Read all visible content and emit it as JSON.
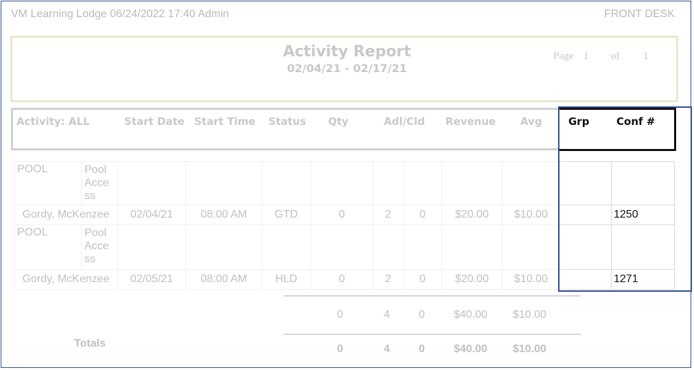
{
  "header": {
    "left": "VM Learning Lodge 06/24/2022 17:40  Admin",
    "right": "FRONT DESK"
  },
  "report": {
    "title": "Activity Report",
    "range": "02/04/21 - 02/17/21",
    "page_label": "Page",
    "page": "1",
    "of_label": "of",
    "total_pages": "1"
  },
  "columns": [
    "Activity: ALL",
    "Start Date",
    "Start Time",
    "Status",
    "Qty",
    "Adl/Cld",
    "Revenue",
    "Avg",
    "Grp",
    "Conf #"
  ],
  "rows": [
    {
      "activity": "POOL",
      "desc": "Pool Acce ss"
    },
    {
      "name": "Gordy, McKenzee",
      "date": "02/04/21",
      "time": "08:00 AM",
      "status": "GTD",
      "qty": "0",
      "adl": "2",
      "cld": "0",
      "revenue": "$20.00",
      "avg": "$10.00",
      "grp": "",
      "conf": "1250"
    },
    {
      "activity": "POOL",
      "desc": "Pool Acce ss"
    },
    {
      "name": "Gordy, McKenzee",
      "date": "02/05/21",
      "time": "08:00 AM",
      "status": "HLD",
      "qty": "0",
      "adl": "2",
      "cld": "0",
      "revenue": "$20.00",
      "avg": "$10.00",
      "grp": "",
      "conf": "1271"
    }
  ],
  "subtotal": {
    "qty": "0",
    "adl": "4",
    "cld": "0",
    "revenue": "$40.00",
    "avg": "$10.00"
  },
  "totals": {
    "label": "Totals",
    "qty": "0",
    "adl": "4",
    "cld": "0",
    "revenue": "$40.00",
    "avg": "$10.00"
  },
  "colors": {
    "highlight_border": "#2f4b8c",
    "faded_text": "#c0c0c0"
  }
}
